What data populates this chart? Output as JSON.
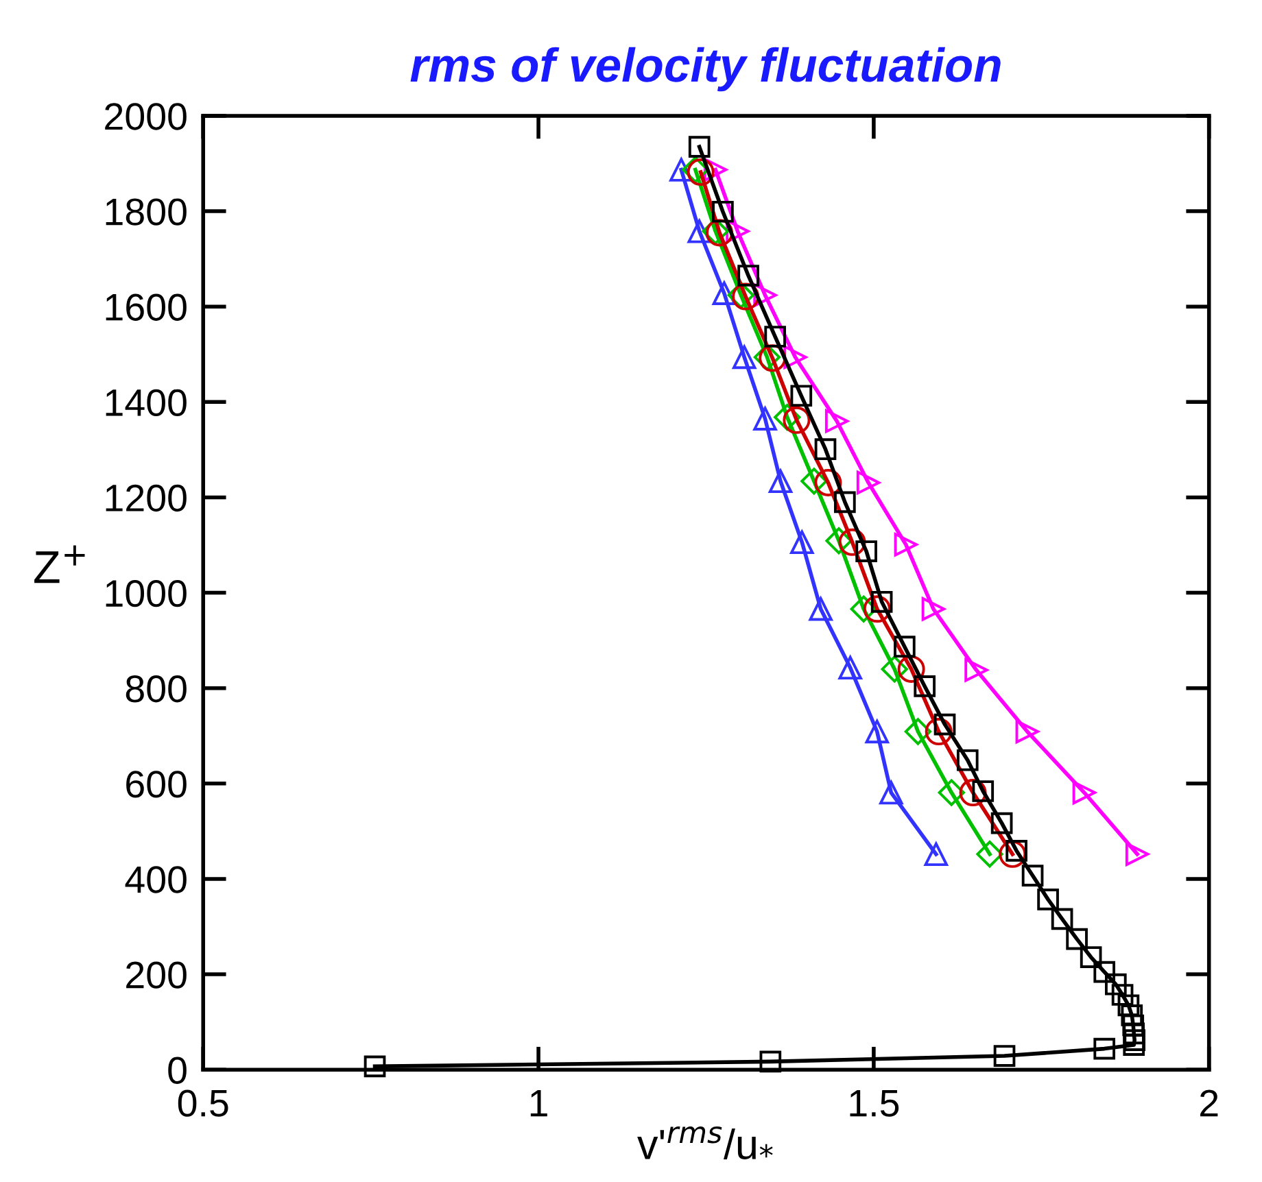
{
  "chart_data": {
    "type": "line",
    "title": "rms of velocity fluctuation",
    "xlabel": "v'$^{rms}$/u$_{*}$",
    "ylabel": "Z$^{+}$",
    "xlim": [
      0.5,
      2
    ],
    "xticks": [
      0.5,
      1,
      1.5,
      2
    ],
    "ylim": [
      0,
      2000
    ],
    "yticks": [
      0,
      200,
      400,
      600,
      800,
      1000,
      1200,
      1400,
      1600,
      1800,
      2000
    ],
    "grid": false,
    "legend": false,
    "line_style": "solid",
    "series": [
      {
        "color": "#3333ff",
        "marker": "triangle",
        "x": [
          1.213,
          1.24,
          1.277,
          1.307,
          1.338,
          1.361,
          1.393,
          1.421,
          1.465,
          1.505,
          1.526,
          1.593
        ],
        "values": [
          1887,
          1758,
          1628,
          1494,
          1365,
          1234,
          1106,
          966,
          843,
          709,
          581,
          452
        ]
      },
      {
        "color": "#ff00ff",
        "marker": "triangle_right",
        "x": [
          1.264,
          1.297,
          1.338,
          1.383,
          1.445,
          1.492,
          1.548,
          1.589,
          1.653,
          1.729,
          1.814,
          1.893
        ],
        "values": [
          1887,
          1758,
          1624,
          1494,
          1360,
          1231,
          1101,
          966,
          838,
          709,
          581,
          452
        ]
      },
      {
        "color": "#00c000",
        "marker": "diamond",
        "x": [
          1.234,
          1.264,
          1.302,
          1.341,
          1.371,
          1.411,
          1.448,
          1.485,
          1.531,
          1.566,
          1.616,
          1.673
        ],
        "values": [
          1887,
          1758,
          1624,
          1494,
          1368,
          1234,
          1109,
          966,
          840,
          709,
          581,
          452
        ]
      },
      {
        "color": "#cc0000",
        "marker": "circle",
        "x": [
          1.242,
          1.27,
          1.309,
          1.349,
          1.385,
          1.432,
          1.468,
          1.505,
          1.556,
          1.597,
          1.648,
          1.707
        ],
        "values": [
          1882,
          1755,
          1621,
          1492,
          1362,
          1231,
          1106,
          966,
          840,
          709,
          581,
          452
        ]
      },
      {
        "color": "#000000",
        "marker": "square",
        "x": [
          1.24,
          1.275,
          1.313,
          1.353,
          1.392,
          1.428,
          1.457,
          1.489,
          1.512,
          1.546,
          1.576,
          1.606,
          1.64,
          1.663,
          1.691,
          1.713,
          1.737,
          1.76,
          1.781,
          1.803,
          1.824,
          1.844,
          1.861,
          1.871,
          1.88,
          1.885,
          1.887,
          1.888,
          1.889,
          1.888,
          1.844,
          1.695,
          1.346,
          0.756
        ],
        "values": [
          1935,
          1799,
          1665,
          1537,
          1413,
          1301,
          1190,
          1087,
          981,
          887,
          804,
          724,
          649,
          584,
          517,
          459,
          407,
          357,
          316,
          274,
          236,
          205,
          179,
          157,
          135,
          114,
          93,
          76,
          62,
          52,
          44,
          29,
          17,
          7
        ]
      }
    ]
  }
}
